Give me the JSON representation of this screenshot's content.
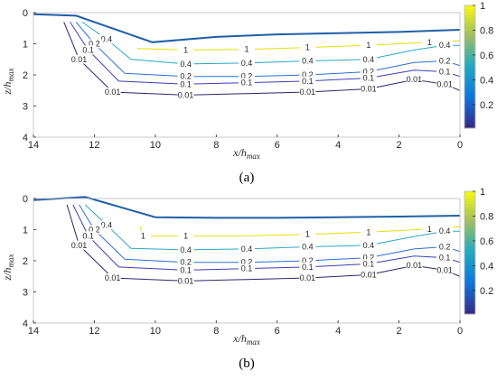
{
  "chart_data": [
    {
      "type": "contour",
      "panel_label": "(a)",
      "xlabel": "x/h",
      "xlabel_sub": "max",
      "ylabel": "z/h",
      "ylabel_sub": "max",
      "xlim": [
        14,
        0
      ],
      "ylim": [
        4,
        0
      ],
      "x_ticks": [
        14,
        12,
        10,
        8,
        6,
        4,
        2,
        0
      ],
      "y_ticks": [
        0,
        1,
        2,
        3,
        4
      ],
      "colorbar": {
        "ticks": [
          0.2,
          0.4,
          0.6,
          0.8,
          1
        ],
        "range": [
          0.01,
          1
        ]
      },
      "free_surface": [
        [
          14,
          0.05
        ],
        [
          12.6,
          0.1
        ],
        [
          10.1,
          0.95
        ],
        [
          8,
          0.78
        ],
        [
          6,
          0.7
        ],
        [
          4,
          0.66
        ],
        [
          2,
          0.62
        ],
        [
          0,
          0.55
        ]
      ],
      "contours": [
        {
          "level": 1,
          "labels": [
            "1",
            "1",
            "1",
            "1",
            "1"
          ],
          "points": [
            [
              10.6,
              1.15
            ],
            [
              9,
              1.2
            ],
            [
              7,
              1.18
            ],
            [
              5,
              1.12
            ],
            [
              3,
              1.05
            ],
            [
              1,
              0.95
            ],
            [
              0,
              0.9
            ]
          ]
        },
        {
          "level": 0.4,
          "labels": [
            "0.4",
            "0.4",
            "0.4",
            "0.4",
            "0.4",
            "0.4"
          ],
          "points": [
            [
              12.4,
              0.3
            ],
            [
              11.6,
              0.85
            ],
            [
              10.8,
              1.5
            ],
            [
              9,
              1.65
            ],
            [
              7,
              1.62
            ],
            [
              5,
              1.55
            ],
            [
              3,
              1.5
            ],
            [
              1.5,
              1.2
            ],
            [
              0.5,
              1.05
            ],
            [
              0,
              1.05
            ]
          ]
        },
        {
          "level": 0.2,
          "labels": [
            "0.2",
            "0.2",
            "0.2",
            "0.2",
            "0.2",
            "0.2"
          ],
          "points": [
            [
              12.6,
              0.3
            ],
            [
              12,
              1.0
            ],
            [
              11,
              1.95
            ],
            [
              9,
              2.05
            ],
            [
              7,
              2.05
            ],
            [
              5,
              2.0
            ],
            [
              3,
              1.9
            ],
            [
              1.5,
              1.6
            ],
            [
              0.5,
              1.55
            ],
            [
              0,
              1.7
            ]
          ]
        },
        {
          "level": 0.1,
          "labels": [
            "0.1",
            "0.1",
            "0.1",
            "0.1",
            "0.1",
            "0.1"
          ],
          "points": [
            [
              12.8,
              0.3
            ],
            [
              12.2,
              1.2
            ],
            [
              11.2,
              2.2
            ],
            [
              9,
              2.3
            ],
            [
              7,
              2.25
            ],
            [
              5,
              2.2
            ],
            [
              3,
              2.1
            ],
            [
              1.5,
              1.85
            ],
            [
              0.5,
              1.9
            ],
            [
              0,
              2.05
            ]
          ]
        },
        {
          "level": 0.01,
          "labels": [
            "0.01",
            "0.01",
            "0.01",
            "0.01",
            "0.01",
            "0.01",
            "0.01"
          ],
          "points": [
            [
              13.0,
              0.3
            ],
            [
              12.5,
              1.5
            ],
            [
              11.4,
              2.55
            ],
            [
              9,
              2.65
            ],
            [
              7,
              2.6
            ],
            [
              5,
              2.55
            ],
            [
              3,
              2.45
            ],
            [
              1.5,
              2.15
            ],
            [
              0.5,
              2.3
            ],
            [
              0,
              2.5
            ]
          ]
        }
      ]
    },
    {
      "type": "contour",
      "panel_label": "(b)",
      "xlabel": "x/h",
      "xlabel_sub": "max",
      "ylabel": "z/h",
      "ylabel_sub": "max",
      "xlim": [
        14,
        0
      ],
      "ylim": [
        4,
        0
      ],
      "x_ticks": [
        14,
        12,
        10,
        8,
        6,
        4,
        2,
        0
      ],
      "y_ticks": [
        0,
        1,
        2,
        3,
        4
      ],
      "colorbar": {
        "ticks": [
          0.2,
          0.4,
          0.6,
          0.8,
          1
        ],
        "range": [
          0.01,
          1
        ]
      },
      "free_surface": [
        [
          14,
          0.05
        ],
        [
          12.3,
          -0.05
        ],
        [
          10.0,
          0.6
        ],
        [
          8,
          0.62
        ],
        [
          6,
          0.62
        ],
        [
          4,
          0.6
        ],
        [
          2,
          0.58
        ],
        [
          0,
          0.55
        ]
      ],
      "contours": [
        {
          "level": 1,
          "labels": [
            "1",
            "1",
            "1",
            "1",
            "1"
          ],
          "points": [
            [
              10.5,
              0.9
            ],
            [
              10.4,
              1.2
            ],
            [
              9,
              1.2
            ],
            [
              7,
              1.2
            ],
            [
              5,
              1.15
            ],
            [
              3,
              1.08
            ],
            [
              1,
              0.98
            ],
            [
              0,
              0.9
            ]
          ]
        },
        {
          "level": 0.4,
          "labels": [
            "0.4",
            "0.4",
            "0.4",
            "0.4",
            "0.4",
            "0.4"
          ],
          "points": [
            [
              12.3,
              0.2
            ],
            [
              11.6,
              0.85
            ],
            [
              10.8,
              1.6
            ],
            [
              9,
              1.65
            ],
            [
              7,
              1.62
            ],
            [
              5,
              1.55
            ],
            [
              3,
              1.5
            ],
            [
              1.5,
              1.22
            ],
            [
              0.5,
              1.05
            ],
            [
              0,
              1.05
            ]
          ]
        },
        {
          "level": 0.2,
          "labels": [
            "0.2",
            "0.2",
            "0.2",
            "0.2",
            "0.2",
            "0.2"
          ],
          "points": [
            [
              12.5,
              0.2
            ],
            [
              12,
              1.0
            ],
            [
              11,
              1.95
            ],
            [
              9,
              2.05
            ],
            [
              7,
              2.05
            ],
            [
              5,
              2.0
            ],
            [
              3,
              1.9
            ],
            [
              1.5,
              1.62
            ],
            [
              0.5,
              1.55
            ],
            [
              0,
              1.7
            ]
          ]
        },
        {
          "level": 0.1,
          "labels": [
            "0.1",
            "0.1",
            "0.1",
            "0.1",
            "0.1",
            "0.1"
          ],
          "points": [
            [
              12.7,
              0.2
            ],
            [
              12.2,
              1.2
            ],
            [
              11.2,
              2.2
            ],
            [
              9,
              2.3
            ],
            [
              7,
              2.25
            ],
            [
              5,
              2.2
            ],
            [
              3,
              2.1
            ],
            [
              1.5,
              1.85
            ],
            [
              0.5,
              1.9
            ],
            [
              0,
              2.05
            ]
          ]
        },
        {
          "level": 0.01,
          "labels": [
            "0.01",
            "0.01",
            "0.01",
            "0.01",
            "0.01",
            "0.01",
            "0.01"
          ],
          "points": [
            [
              12.9,
              0.2
            ],
            [
              12.5,
              1.5
            ],
            [
              11.4,
              2.55
            ],
            [
              9,
              2.65
            ],
            [
              7,
              2.6
            ],
            [
              5,
              2.55
            ],
            [
              3,
              2.45
            ],
            [
              1.5,
              2.15
            ],
            [
              0.5,
              2.3
            ],
            [
              0,
              2.5
            ]
          ]
        }
      ]
    }
  ]
}
